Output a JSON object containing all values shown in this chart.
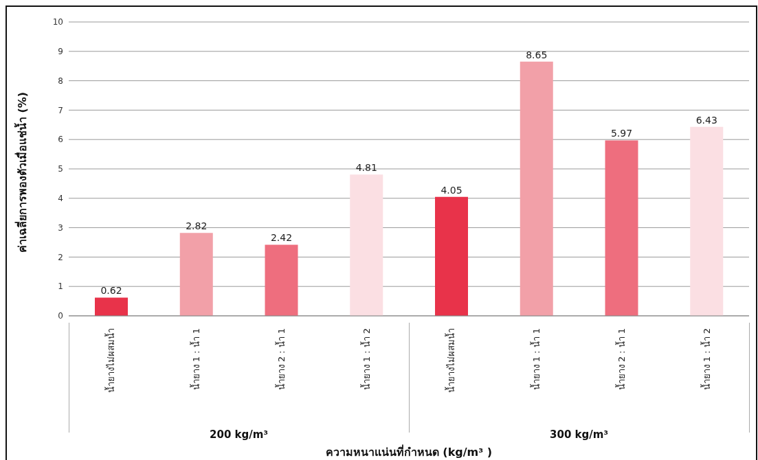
{
  "chart_data": {
    "type": "bar",
    "categories": [
      "น้ำยางไม่ผสมน้ำ",
      "น้ำยาง 1 : น้ำ 1",
      "น้ำยาง 2 : น้ำ 1",
      "น้ำยาง 1 : น้ำ 2",
      "น้ำยางไม่ผสมน้ำ",
      "น้ำยาง 1 : น้ำ 1",
      "น้ำยาง 2 : น้ำ 1",
      "น้ำยาง 1 : น้ำ 2"
    ],
    "values": [
      0.62,
      2.82,
      2.42,
      4.81,
      4.05,
      8.65,
      5.97,
      6.43
    ],
    "colors": [
      "#e8334a",
      "#f2a0a8",
      "#ee6e7e",
      "#fbdfe3",
      "#e8334a",
      "#f2a0a8",
      "#ee6e7e",
      "#fbdfe3"
    ],
    "xlabel": "ความหนาแน่นที่กำหนด (kg/m³ )",
    "ylabel": "ค่าเฉลี่ยการพองตัวเมื่อแช่น้ำ (%)",
    "annotations": [
      "200 kg/m³",
      "300 kg/m³"
    ],
    "ylim": [
      0,
      10
    ],
    "yticks": [
      0,
      1,
      2,
      3,
      4,
      5,
      6,
      7,
      8,
      9,
      10
    ],
    "grid": "y",
    "data_labels": true,
    "legend": false
  }
}
